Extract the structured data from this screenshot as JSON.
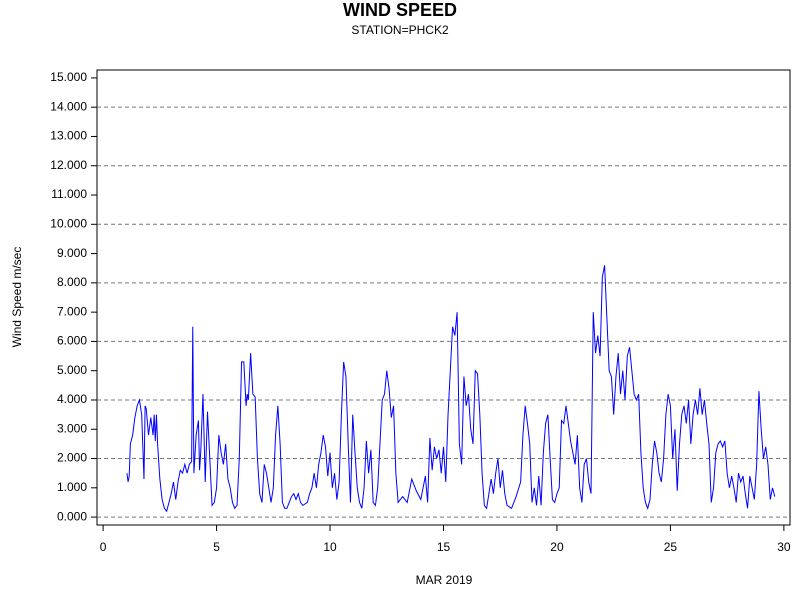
{
  "chart_data": {
    "type": "line",
    "title": "WIND SPEED",
    "subtitle": "STATION=PHCK2",
    "x_label": "MAR 2019",
    "y_label": "Wind Speed m/sec",
    "color": "#0000ff",
    "grid": true,
    "xlim": [
      -0.27,
      30.27
    ],
    "xticks": [
      0,
      5,
      10,
      15,
      20,
      25,
      30
    ],
    "ylim": [
      -0.27,
      15.27
    ],
    "yticks": [
      {
        "value": 0,
        "label": "0.000"
      },
      {
        "value": 1,
        "label": "1.000"
      },
      {
        "value": 2,
        "label": "2.000"
      },
      {
        "value": 3,
        "label": "3.000"
      },
      {
        "value": 4,
        "label": "4.000"
      },
      {
        "value": 5,
        "label": "5.000"
      },
      {
        "value": 6,
        "label": "6.000"
      },
      {
        "value": 7,
        "label": "7.000"
      },
      {
        "value": 8,
        "label": "8.000"
      },
      {
        "value": 9,
        "label": "9.000"
      },
      {
        "value": 10,
        "label": "10.000"
      },
      {
        "value": 11,
        "label": "11.000"
      },
      {
        "value": 12,
        "label": "12.000"
      },
      {
        "value": 13,
        "label": "13.000"
      },
      {
        "value": 14,
        "label": "14.000"
      },
      {
        "value": 15,
        "label": "15.000"
      }
    ],
    "x": [
      1.05,
      1.1,
      1.15,
      1.2,
      1.3,
      1.4,
      1.5,
      1.6,
      1.7,
      1.8,
      1.85,
      1.9,
      2.0,
      2.1,
      2.2,
      2.25,
      2.3,
      2.35,
      2.4,
      2.5,
      2.6,
      2.7,
      2.8,
      2.9,
      3.0,
      3.1,
      3.2,
      3.3,
      3.4,
      3.5,
      3.6,
      3.7,
      3.8,
      3.9,
      3.95,
      4.0,
      4.1,
      4.2,
      4.25,
      4.3,
      4.4,
      4.5,
      4.6,
      4.7,
      4.8,
      4.9,
      5.0,
      5.1,
      5.2,
      5.3,
      5.4,
      5.5,
      5.6,
      5.7,
      5.8,
      5.9,
      6.0,
      6.1,
      6.2,
      6.3,
      6.35,
      6.4,
      6.5,
      6.6,
      6.7,
      6.8,
      6.9,
      7.0,
      7.1,
      7.2,
      7.3,
      7.4,
      7.5,
      7.6,
      7.7,
      7.8,
      7.9,
      8.0,
      8.1,
      8.2,
      8.3,
      8.4,
      8.5,
      8.6,
      8.7,
      8.8,
      9.0,
      9.1,
      9.2,
      9.3,
      9.4,
      9.5,
      9.6,
      9.7,
      9.8,
      9.9,
      10.0,
      10.1,
      10.2,
      10.3,
      10.4,
      10.5,
      10.6,
      10.7,
      10.8,
      10.9,
      11.0,
      11.1,
      11.2,
      11.3,
      11.4,
      11.5,
      11.6,
      11.7,
      11.8,
      11.9,
      12.0,
      12.1,
      12.2,
      12.3,
      12.4,
      12.5,
      12.6,
      12.7,
      12.8,
      12.9,
      13.0,
      13.2,
      13.4,
      13.6,
      13.8,
      14.0,
      14.2,
      14.3,
      14.4,
      14.5,
      14.6,
      14.7,
      14.8,
      14.9,
      15.0,
      15.1,
      15.2,
      15.3,
      15.4,
      15.5,
      15.6,
      15.7,
      15.8,
      15.9,
      16.0,
      16.1,
      16.2,
      16.3,
      16.4,
      16.5,
      16.6,
      16.7,
      16.8,
      16.9,
      17.0,
      17.1,
      17.2,
      17.3,
      17.4,
      17.5,
      17.6,
      17.7,
      17.8,
      18.0,
      18.2,
      18.4,
      18.5,
      18.6,
      18.7,
      18.8,
      18.9,
      19.0,
      19.1,
      19.2,
      19.3,
      19.4,
      19.5,
      19.6,
      19.7,
      19.8,
      19.9,
      20.0,
      20.1,
      20.2,
      20.3,
      20.4,
      20.5,
      20.6,
      20.7,
      20.8,
      20.9,
      21.0,
      21.1,
      21.2,
      21.3,
      21.4,
      21.5,
      21.6,
      21.7,
      21.8,
      21.9,
      22.0,
      22.1,
      22.2,
      22.3,
      22.4,
      22.5,
      22.6,
      22.7,
      22.8,
      22.9,
      23.0,
      23.1,
      23.2,
      23.3,
      23.4,
      23.5,
      23.6,
      23.7,
      23.8,
      23.9,
      24.0,
      24.1,
      24.2,
      24.3,
      24.4,
      24.5,
      24.6,
      24.7,
      24.8,
      24.9,
      25.0,
      25.1,
      25.2,
      25.3,
      25.4,
      25.5,
      25.6,
      25.7,
      25.8,
      25.9,
      26.0,
      26.1,
      26.2,
      26.3,
      26.4,
      26.5,
      26.6,
      26.7,
      26.8,
      26.9,
      27.0,
      27.1,
      27.2,
      27.3,
      27.4,
      27.5,
      27.6,
      27.7,
      27.8,
      27.9,
      28.0,
      28.1,
      28.2,
      28.3,
      28.4,
      28.5,
      28.6,
      28.7,
      28.8,
      28.9,
      29.0,
      29.1,
      29.2,
      29.3,
      29.4,
      29.5,
      29.6
    ],
    "values": [
      1.5,
      1.2,
      1.4,
      2.5,
      2.8,
      3.4,
      3.8,
      4.0,
      3.5,
      1.3,
      3.8,
      3.7,
      2.8,
      3.4,
      2.8,
      3.5,
      2.6,
      3.5,
      2.5,
      1.3,
      0.6,
      0.3,
      0.2,
      0.5,
      0.8,
      1.2,
      0.6,
      1.2,
      1.6,
      1.5,
      1.8,
      1.5,
      1.8,
      1.9,
      6.5,
      1.5,
      2.8,
      3.3,
      1.6,
      2.2,
      4.2,
      1.2,
      3.6,
      2.0,
      0.4,
      0.5,
      1.0,
      2.8,
      2.2,
      1.8,
      2.5,
      1.3,
      1.0,
      0.5,
      0.3,
      0.4,
      2.0,
      5.3,
      5.3,
      3.8,
      4.2,
      4.0,
      5.6,
      4.2,
      4.1,
      2.0,
      0.8,
      0.5,
      1.8,
      1.5,
      1.0,
      0.5,
      1.0,
      2.8,
      3.8,
      2.5,
      0.5,
      0.3,
      0.3,
      0.5,
      0.7,
      0.8,
      0.6,
      0.8,
      0.5,
      0.4,
      0.5,
      0.8,
      1.0,
      1.5,
      1.0,
      1.8,
      2.2,
      2.8,
      2.4,
      1.4,
      2.2,
      1.0,
      1.5,
      0.6,
      1.2,
      3.5,
      5.3,
      4.8,
      2.5,
      0.5,
      3.5,
      2.2,
      1.0,
      0.5,
      0.3,
      1.0,
      2.6,
      1.5,
      2.3,
      0.5,
      0.4,
      1.0,
      2.5,
      4.0,
      4.2,
      5.0,
      4.4,
      3.4,
      3.8,
      1.5,
      0.5,
      0.7,
      0.5,
      1.3,
      0.9,
      0.6,
      1.4,
      0.5,
      2.7,
      1.6,
      2.4,
      2.0,
      2.3,
      1.5,
      2.4,
      1.2,
      3.5,
      5.0,
      6.5,
      6.2,
      7.0,
      2.5,
      1.8,
      4.8,
      3.8,
      4.2,
      3.0,
      2.5,
      5.0,
      4.9,
      3.5,
      1.5,
      0.4,
      0.3,
      0.8,
      1.3,
      0.8,
      1.5,
      2.0,
      1.0,
      1.6,
      0.8,
      0.4,
      0.3,
      0.7,
      1.2,
      2.8,
      3.8,
      3.2,
      2.5,
      0.5,
      1.0,
      0.4,
      1.4,
      0.4,
      2.2,
      3.2,
      3.5,
      2.0,
      0.6,
      0.5,
      0.8,
      1.0,
      3.3,
      3.2,
      3.8,
      3.2,
      2.6,
      2.2,
      1.8,
      2.8,
      1.0,
      0.5,
      1.8,
      2.0,
      1.2,
      0.8,
      7.0,
      5.6,
      6.2,
      5.5,
      8.2,
      8.6,
      6.8,
      5.0,
      4.8,
      3.5,
      4.8,
      5.6,
      4.2,
      5.0,
      4.0,
      5.5,
      5.8,
      5.0,
      4.2,
      4.0,
      4.2,
      2.2,
      1.0,
      0.5,
      0.3,
      0.6,
      1.8,
      2.6,
      2.2,
      1.5,
      1.2,
      2.0,
      3.5,
      4.2,
      3.8,
      2.0,
      3.0,
      0.9,
      2.5,
      3.5,
      3.8,
      3.2,
      4.0,
      2.5,
      3.5,
      4.0,
      3.5,
      4.4,
      3.5,
      4.0,
      3.2,
      2.5,
      0.5,
      1.0,
      2.2,
      2.5,
      2.6,
      2.4,
      2.6,
      1.5,
      1.0,
      1.4,
      1.0,
      0.5,
      1.5,
      1.2,
      1.4,
      0.8,
      0.3,
      1.4,
      1.0,
      0.6,
      1.8,
      4.3,
      3.0,
      2.0,
      2.4,
      1.8,
      0.6,
      1.0,
      0.7
    ]
  }
}
